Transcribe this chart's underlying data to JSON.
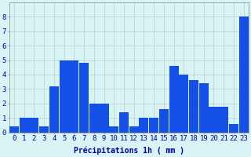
{
  "hours": [
    0,
    1,
    2,
    3,
    4,
    5,
    6,
    7,
    8,
    9,
    10,
    11,
    12,
    13,
    14,
    15,
    16,
    17,
    18,
    19,
    20,
    21,
    22,
    23
  ],
  "values": [
    0.4,
    1.0,
    1.0,
    0.4,
    3.2,
    5.0,
    5.0,
    4.8,
    2.0,
    2.0,
    0.4,
    1.4,
    0.4,
    1.0,
    1.0,
    1.6,
    4.6,
    4.0,
    3.6,
    3.4,
    1.8,
    1.8,
    0.6,
    8.0
  ],
  "bar_color": "#1450E8",
  "background_color": "#D8F4F4",
  "grid_color": "#B8CED0",
  "xlabel": "Précipitations 1h ( mm )",
  "ylim": [
    0,
    9
  ],
  "yticks": [
    0,
    1,
    2,
    3,
    4,
    5,
    6,
    7,
    8
  ],
  "xlabel_fontsize": 7,
  "tick_fontsize": 6.5
}
